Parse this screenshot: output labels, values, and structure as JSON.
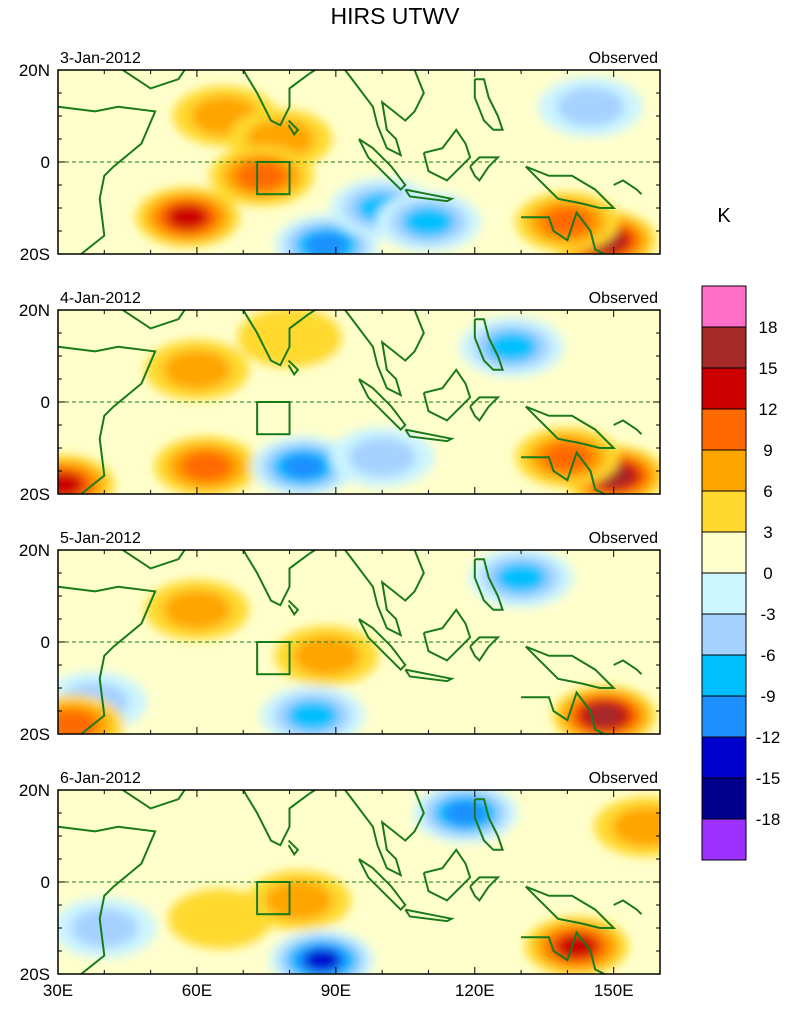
{
  "title": "HIRS UTWV",
  "colorbar": {
    "unit": "K",
    "levels": [
      "18",
      "15",
      "12",
      "9",
      "6",
      "3",
      "0",
      "-3",
      "-6",
      "-9",
      "-12",
      "-15",
      "-18"
    ],
    "colors": [
      "#ff6ec7",
      "#a52a2a",
      "#cc0000",
      "#ff6a00",
      "#ffa500",
      "#ffd92f",
      "#ffffcc",
      "#ccf5ff",
      "#a6d2ff",
      "#00bfff",
      "#1e90ff",
      "#0000cd",
      "#00008b",
      "#9b30ff"
    ]
  },
  "chart_data": [
    {
      "type": "heatmap",
      "date_label": "3-Jan-2012",
      "kind_label": "Observed",
      "xlabel": "",
      "ylabel": "",
      "x_ticks": [
        "30E",
        "60E",
        "90E",
        "120E",
        "150E"
      ],
      "y_ticks": [
        "20N",
        "0",
        "20S"
      ],
      "xlim": [
        30,
        160
      ],
      "ylim": [
        -20,
        20
      ],
      "features": [
        {
          "lon": 58,
          "lat": -12,
          "value": 12
        },
        {
          "lon": 66,
          "lat": 10,
          "value": 6
        },
        {
          "lon": 78,
          "lat": 5,
          "value": 6
        },
        {
          "lon": 74,
          "lat": -3,
          "value": 9
        },
        {
          "lon": 88,
          "lat": -18,
          "value": -12
        },
        {
          "lon": 100,
          "lat": -10,
          "value": -9
        },
        {
          "lon": 110,
          "lat": -13,
          "value": -9
        },
        {
          "lon": 148,
          "lat": -17,
          "value": 15
        },
        {
          "lon": 140,
          "lat": -13,
          "value": 9
        },
        {
          "lon": 145,
          "lat": 12,
          "value": -6
        }
      ]
    },
    {
      "type": "heatmap",
      "date_label": "4-Jan-2012",
      "kind_label": "Observed",
      "xlabel": "",
      "ylabel": "",
      "x_ticks": [
        "30E",
        "60E",
        "90E",
        "120E",
        "150E"
      ],
      "y_ticks": [
        "20N",
        "0",
        "20S"
      ],
      "xlim": [
        30,
        160
      ],
      "ylim": [
        -20,
        20
      ],
      "features": [
        {
          "lon": 62,
          "lat": -14,
          "value": 9
        },
        {
          "lon": 60,
          "lat": 7,
          "value": 6
        },
        {
          "lon": 80,
          "lat": 14,
          "value": 3
        },
        {
          "lon": 83,
          "lat": -14,
          "value": -12
        },
        {
          "lon": 100,
          "lat": -12,
          "value": -6
        },
        {
          "lon": 128,
          "lat": 12,
          "value": -9
        },
        {
          "lon": 150,
          "lat": -16,
          "value": 15
        },
        {
          "lon": 140,
          "lat": -12,
          "value": 9
        },
        {
          "lon": 31,
          "lat": -18,
          "value": 12
        }
      ]
    },
    {
      "type": "heatmap",
      "date_label": "5-Jan-2012",
      "kind_label": "Observed",
      "xlabel": "",
      "ylabel": "",
      "x_ticks": [
        "30E",
        "60E",
        "90E",
        "120E",
        "150E"
      ],
      "y_ticks": [
        "20N",
        "0",
        "20S"
      ],
      "xlim": [
        30,
        160
      ],
      "ylim": [
        -20,
        20
      ],
      "features": [
        {
          "lon": 88,
          "lat": -3,
          "value": 6
        },
        {
          "lon": 60,
          "lat": 7,
          "value": 6
        },
        {
          "lon": 85,
          "lat": -16,
          "value": -9
        },
        {
          "lon": 38,
          "lat": -13,
          "value": -6
        },
        {
          "lon": 130,
          "lat": 14,
          "value": -9
        },
        {
          "lon": 148,
          "lat": -16,
          "value": 15
        },
        {
          "lon": 33,
          "lat": -18,
          "value": 9
        }
      ]
    },
    {
      "type": "heatmap",
      "date_label": "6-Jan-2012",
      "kind_label": "Observed",
      "xlabel": "",
      "ylabel": "",
      "x_ticks": [
        "30E",
        "60E",
        "90E",
        "120E",
        "150E"
      ],
      "y_ticks": [
        "20N",
        "0",
        "20S"
      ],
      "xlim": [
        30,
        160
      ],
      "ylim": [
        -20,
        20
      ],
      "features": [
        {
          "lon": 82,
          "lat": -4,
          "value": 6
        },
        {
          "lon": 65,
          "lat": -8,
          "value": 3
        },
        {
          "lon": 87,
          "lat": -17,
          "value": -15
        },
        {
          "lon": 118,
          "lat": 15,
          "value": -12
        },
        {
          "lon": 40,
          "lat": -10,
          "value": -6
        },
        {
          "lon": 142,
          "lat": -14,
          "value": 12
        },
        {
          "lon": 157,
          "lat": 12,
          "value": 6
        }
      ]
    }
  ]
}
